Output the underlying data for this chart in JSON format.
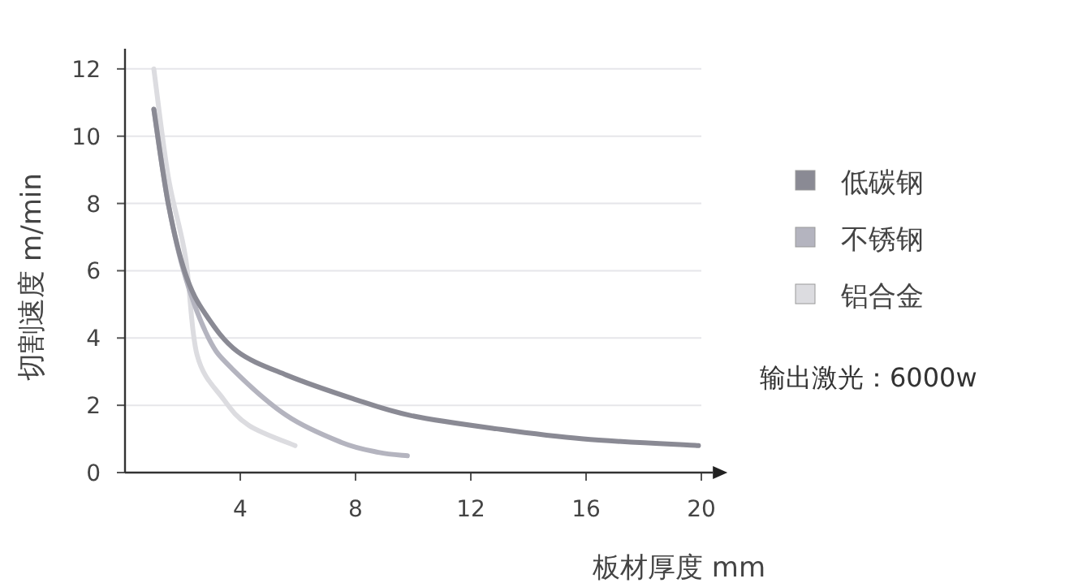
{
  "chart_data": {
    "type": "line",
    "xlabel": "板材厚度  mm",
    "ylabel": "切割速度  m/min",
    "xlim": [
      0,
      20.4
    ],
    "ylim": [
      0,
      12.6
    ],
    "xticks": [
      4,
      8,
      12,
      16,
      20
    ],
    "yticks": [
      0,
      2,
      4,
      6,
      8,
      10,
      12
    ],
    "grid": "y",
    "legend": "right",
    "marker": "none",
    "line_style": "solid",
    "annotations": [
      "输出激光：6000w"
    ],
    "series": [
      {
        "name": "低碳钢",
        "color": "#8a8a94",
        "x": [
          1.0,
          1.5,
          2.1,
          2.8,
          3.9,
          5.6,
          7.9,
          9.9,
          12.9,
          15.9,
          19.9
        ],
        "values": [
          10.8,
          8.0,
          5.9,
          4.7,
          3.6,
          2.9,
          2.2,
          1.7,
          1.3,
          1.0,
          0.8
        ]
      },
      {
        "name": "不锈钢",
        "color": "#b4b4bf",
        "x": [
          1.0,
          1.5,
          2.1,
          2.9,
          3.7,
          5.6,
          7.5,
          8.8,
          9.8
        ],
        "values": [
          10.8,
          8.0,
          5.8,
          4.0,
          3.1,
          1.7,
          0.9,
          0.6,
          0.5
        ]
      },
      {
        "name": "铝合金",
        "color": "#dcdce0",
        "x": [
          1.0,
          1.5,
          2.1,
          2.5,
          3.4,
          4.3,
          5.9
        ],
        "values": [
          12.0,
          8.8,
          6.4,
          3.5,
          2.2,
          1.4,
          0.8
        ]
      }
    ]
  }
}
